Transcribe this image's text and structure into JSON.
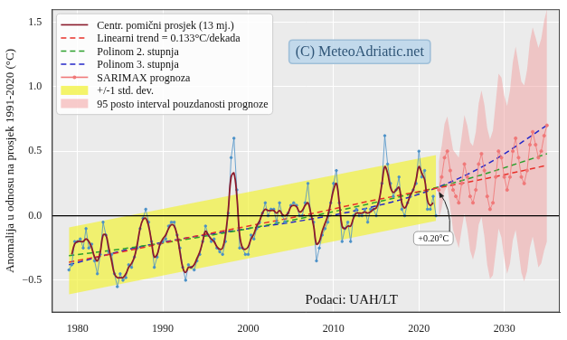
{
  "chart_data": {
    "type": "line",
    "y_label": "Anomalija u odnosu na prosjek 1991-2020 (°C)",
    "watermark": "(C) MeteoAdriatic.net",
    "source": "Podaci: UAH/LT",
    "xlim": [
      1977,
      2036.5
    ],
    "xticks": [
      1980,
      1990,
      2000,
      2010,
      2020,
      2030
    ],
    "ylim": [
      -0.75,
      1.6
    ],
    "yticks": [
      {
        "value": -0.5,
        "label": "−0.5"
      },
      {
        "value": 0,
        "label": "0.0"
      },
      0.5,
      {
        "value": 1,
        "label": "1.0"
      },
      1.5
    ],
    "grid": true,
    "legend": "upper left",
    "x": [
      1979,
      1979.33,
      1979.67,
      1980,
      1980.33,
      1980.67,
      1981,
      1981.33,
      1981.67,
      1982,
      1982.33,
      1982.67,
      1983,
      1983.33,
      1983.67,
      1984,
      1984.33,
      1984.67,
      1985,
      1985.33,
      1985.67,
      1986,
      1986.33,
      1986.67,
      1987,
      1987.33,
      1987.67,
      1988,
      1988.33,
      1988.67,
      1989,
      1989.33,
      1989.67,
      1990,
      1990.33,
      1990.67,
      1991,
      1991.33,
      1991.67,
      1992,
      1992.33,
      1992.67,
      1993,
      1993.33,
      1993.67,
      1994,
      1994.33,
      1994.67,
      1995,
      1995.33,
      1995.67,
      1996,
      1996.33,
      1996.67,
      1997,
      1997.33,
      1997.67,
      1998,
      1998.33,
      1998.67,
      1999,
      1999.33,
      1999.67,
      2000,
      2000.33,
      2000.67,
      2001,
      2001.33,
      2001.67,
      2002,
      2002.33,
      2002.67,
      2003,
      2003.33,
      2003.67,
      2004,
      2004.33,
      2004.67,
      2005,
      2005.33,
      2005.67,
      2006,
      2006.33,
      2006.67,
      2007,
      2007.33,
      2007.67,
      2008,
      2008.33,
      2008.67,
      2009,
      2009.33,
      2009.67,
      2010,
      2010.33,
      2010.67,
      2011,
      2011.33,
      2011.67,
      2012,
      2012.33,
      2012.67,
      2013,
      2013.33,
      2013.67,
      2014,
      2014.33,
      2014.67,
      2015,
      2015.33,
      2015.67,
      2016,
      2016.33,
      2016.67,
      2017,
      2017.33,
      2017.67,
      2018,
      2018.33,
      2018.67,
      2019,
      2019.33,
      2019.67,
      2020,
      2020.33,
      2020.67,
      2021,
      2021.33,
      2021.67,
      2022
    ],
    "series": [
      {
        "color": "#4a90c8",
        "marker": "circle",
        "values": [
          -0.42,
          -0.38,
          -0.2,
          -0.2,
          -0.18,
          -0.25,
          -0.1,
          -0.25,
          -0.22,
          -0.35,
          -0.45,
          -0.3,
          -0.05,
          -0.15,
          -0.28,
          -0.3,
          -0.45,
          -0.55,
          -0.45,
          -0.5,
          -0.48,
          -0.38,
          -0.4,
          -0.32,
          -0.25,
          -0.1,
          -0.02,
          0.05,
          -0.05,
          -0.2,
          -0.4,
          -0.32,
          -0.22,
          -0.2,
          -0.18,
          -0.08,
          -0.05,
          -0.05,
          -0.15,
          -0.25,
          -0.4,
          -0.5,
          -0.38,
          -0.4,
          -0.42,
          -0.35,
          -0.3,
          -0.2,
          -0.08,
          -0.15,
          -0.2,
          -0.18,
          -0.25,
          -0.28,
          -0.3,
          -0.2,
          0.02,
          0.45,
          0.6,
          0.2,
          -0.25,
          -0.25,
          -0.3,
          -0.3,
          -0.15,
          -0.18,
          -0.1,
          -0.05,
          0.02,
          0.1,
          0.0,
          0.05,
          0.05,
          -0.05,
          0.1,
          0.0,
          -0.05,
          0.02,
          0.08,
          0.1,
          0.08,
          0.0,
          0.0,
          0.1,
          0.25,
          0.0,
          -0.05,
          -0.35,
          -0.25,
          -0.15,
          -0.1,
          -0.05,
          0.1,
          0.25,
          0.35,
          0.1,
          -0.2,
          -0.1,
          -0.05,
          -0.2,
          0.0,
          0.05,
          0.0,
          0.0,
          0.05,
          -0.05,
          0.05,
          0.05,
          0.0,
          0.1,
          0.25,
          0.62,
          0.4,
          0.25,
          0.15,
          0.2,
          0.3,
          0.05,
          0.0,
          0.1,
          0.15,
          0.2,
          0.25,
          0.5,
          0.3,
          0.35,
          0.05,
          0.05,
          0.15,
          0.0
        ]
      },
      {
        "name": "Centr. pomični prosjek (13 mj.)",
        "color": "#8b1a2b",
        "values": [
          null,
          -0.3,
          -0.22,
          -0.2,
          -0.2,
          -0.2,
          -0.18,
          -0.2,
          -0.25,
          -0.32,
          -0.35,
          -0.28,
          -0.15,
          -0.15,
          -0.25,
          -0.35,
          -0.45,
          -0.48,
          -0.48,
          -0.48,
          -0.45,
          -0.4,
          -0.37,
          -0.32,
          -0.22,
          -0.1,
          -0.03,
          -0.02,
          -0.08,
          -0.2,
          -0.32,
          -0.3,
          -0.22,
          -0.18,
          -0.15,
          -0.1,
          -0.07,
          -0.08,
          -0.15,
          -0.28,
          -0.4,
          -0.44,
          -0.4,
          -0.4,
          -0.38,
          -0.33,
          -0.28,
          -0.2,
          -0.12,
          -0.15,
          -0.18,
          -0.2,
          -0.24,
          -0.26,
          -0.25,
          -0.15,
          0.05,
          0.3,
          0.33,
          0.15,
          -0.15,
          -0.25,
          -0.26,
          -0.24,
          -0.18,
          -0.14,
          -0.08,
          -0.04,
          0.02,
          0.05,
          0.04,
          0.04,
          0.04,
          0.02,
          0.04,
          0.01,
          0.0,
          0.02,
          0.07,
          0.08,
          0.07,
          0.03,
          0.04,
          0.08,
          0.1,
          0.02,
          -0.08,
          -0.22,
          -0.2,
          -0.12,
          -0.06,
          0.0,
          0.1,
          0.2,
          0.25,
          0.1,
          -0.08,
          -0.1,
          -0.08,
          -0.08,
          -0.02,
          0.02,
          0.02,
          0.02,
          0.03,
          0.02,
          0.03,
          0.05,
          0.06,
          0.12,
          0.25,
          0.38,
          0.33,
          0.22,
          0.18,
          0.2,
          0.22,
          0.1,
          0.06,
          0.1,
          0.16,
          0.2,
          0.28,
          0.38,
          0.33,
          0.28,
          0.12,
          0.08,
          0.1,
          null
        ]
      }
    ],
    "trends": {
      "x": [
        1979,
        1986,
        1993,
        2000,
        2007,
        2014,
        2021,
        2028,
        2035
      ],
      "series": [
        {
          "name": "Linearni trend = 0.133°C/dekada",
          "color": "#e8302a",
          "line_style": "dashed",
          "values": [
            -0.36,
            -0.27,
            -0.17,
            -0.08,
            0.01,
            0.11,
            0.2,
            0.29,
            0.39
          ]
        },
        {
          "name": "Polinom 2. stupnja",
          "color": "#2ca02c",
          "line_style": "dashed",
          "values": [
            -0.31,
            -0.25,
            -0.18,
            -0.1,
            -0.01,
            0.09,
            0.2,
            0.33,
            0.48
          ]
        },
        {
          "name": "Polinom 3. stupnja",
          "color": "#2326c8",
          "line_style": "dashed",
          "values": [
            -0.38,
            -0.26,
            -0.17,
            -0.1,
            -0.03,
            0.06,
            0.19,
            0.4,
            0.7
          ]
        }
      ]
    },
    "forecast": {
      "name": "SARIMAX prognoza",
      "color": "#f07878",
      "marker": "circle",
      "x": [
        2022.33,
        2022.67,
        2023,
        2023.33,
        2023.67,
        2024,
        2024.33,
        2024.67,
        2025,
        2025.33,
        2025.67,
        2026,
        2026.33,
        2026.67,
        2027,
        2027.33,
        2027.67,
        2028,
        2028.33,
        2028.67,
        2029,
        2029.33,
        2029.67,
        2030,
        2030.33,
        2030.67,
        2031,
        2031.33,
        2031.67,
        2032,
        2032.33,
        2032.67,
        2033,
        2033.33,
        2033.67,
        2034,
        2034.33,
        2034.67,
        2035
      ],
      "values": [
        0.2,
        0.3,
        0.45,
        0.5,
        0.35,
        0.2,
        0.15,
        0.1,
        0.25,
        0.4,
        0.3,
        0.15,
        0.1,
        0.2,
        0.4,
        0.48,
        0.35,
        0.15,
        0.05,
        0.1,
        0.3,
        0.5,
        0.45,
        0.3,
        0.2,
        0.3,
        0.5,
        0.6,
        0.45,
        0.3,
        0.25,
        0.35,
        0.55,
        0.65,
        0.55,
        0.45,
        0.5,
        0.62,
        0.7
      ],
      "interval": {
        "name": "95 posto interval pouzdanosti prognoze",
        "color": "#f2a0a0",
        "lower": [
          -0.02,
          0.06,
          0.19,
          0.23,
          0.06,
          -0.11,
          -0.18,
          -0.25,
          -0.11,
          0.02,
          -0.1,
          -0.27,
          -0.34,
          -0.25,
          -0.07,
          -0.01,
          -0.16,
          -0.38,
          -0.49,
          -0.46,
          -0.28,
          -0.1,
          -0.17,
          -0.33,
          -0.45,
          -0.37,
          -0.19,
          -0.11,
          -0.27,
          -0.44,
          -0.51,
          -0.43,
          -0.25,
          -0.16,
          -0.28,
          -0.4,
          -0.37,
          -0.27,
          -0.2
        ],
        "upper": [
          0.42,
          0.54,
          0.71,
          0.77,
          0.64,
          0.51,
          0.48,
          0.45,
          0.61,
          0.78,
          0.7,
          0.57,
          0.54,
          0.65,
          0.87,
          0.97,
          0.86,
          0.68,
          0.59,
          0.66,
          0.88,
          1.1,
          1.07,
          0.93,
          0.85,
          0.97,
          1.19,
          1.31,
          1.17,
          1.04,
          1.01,
          1.13,
          1.35,
          1.46,
          1.38,
          1.3,
          1.37,
          1.51,
          1.6
        ]
      }
    },
    "std_band": {
      "name": "+/-1 std. dev.",
      "color": "#f2f23a",
      "x": [
        1979,
        2022
      ],
      "lower": [
        -0.61,
        -0.04
      ],
      "upper": [
        -0.09,
        0.47
      ]
    },
    "annotations": [
      {
        "text": "+0.20°C",
        "x": 2022.33,
        "y": 0.2
      }
    ]
  }
}
